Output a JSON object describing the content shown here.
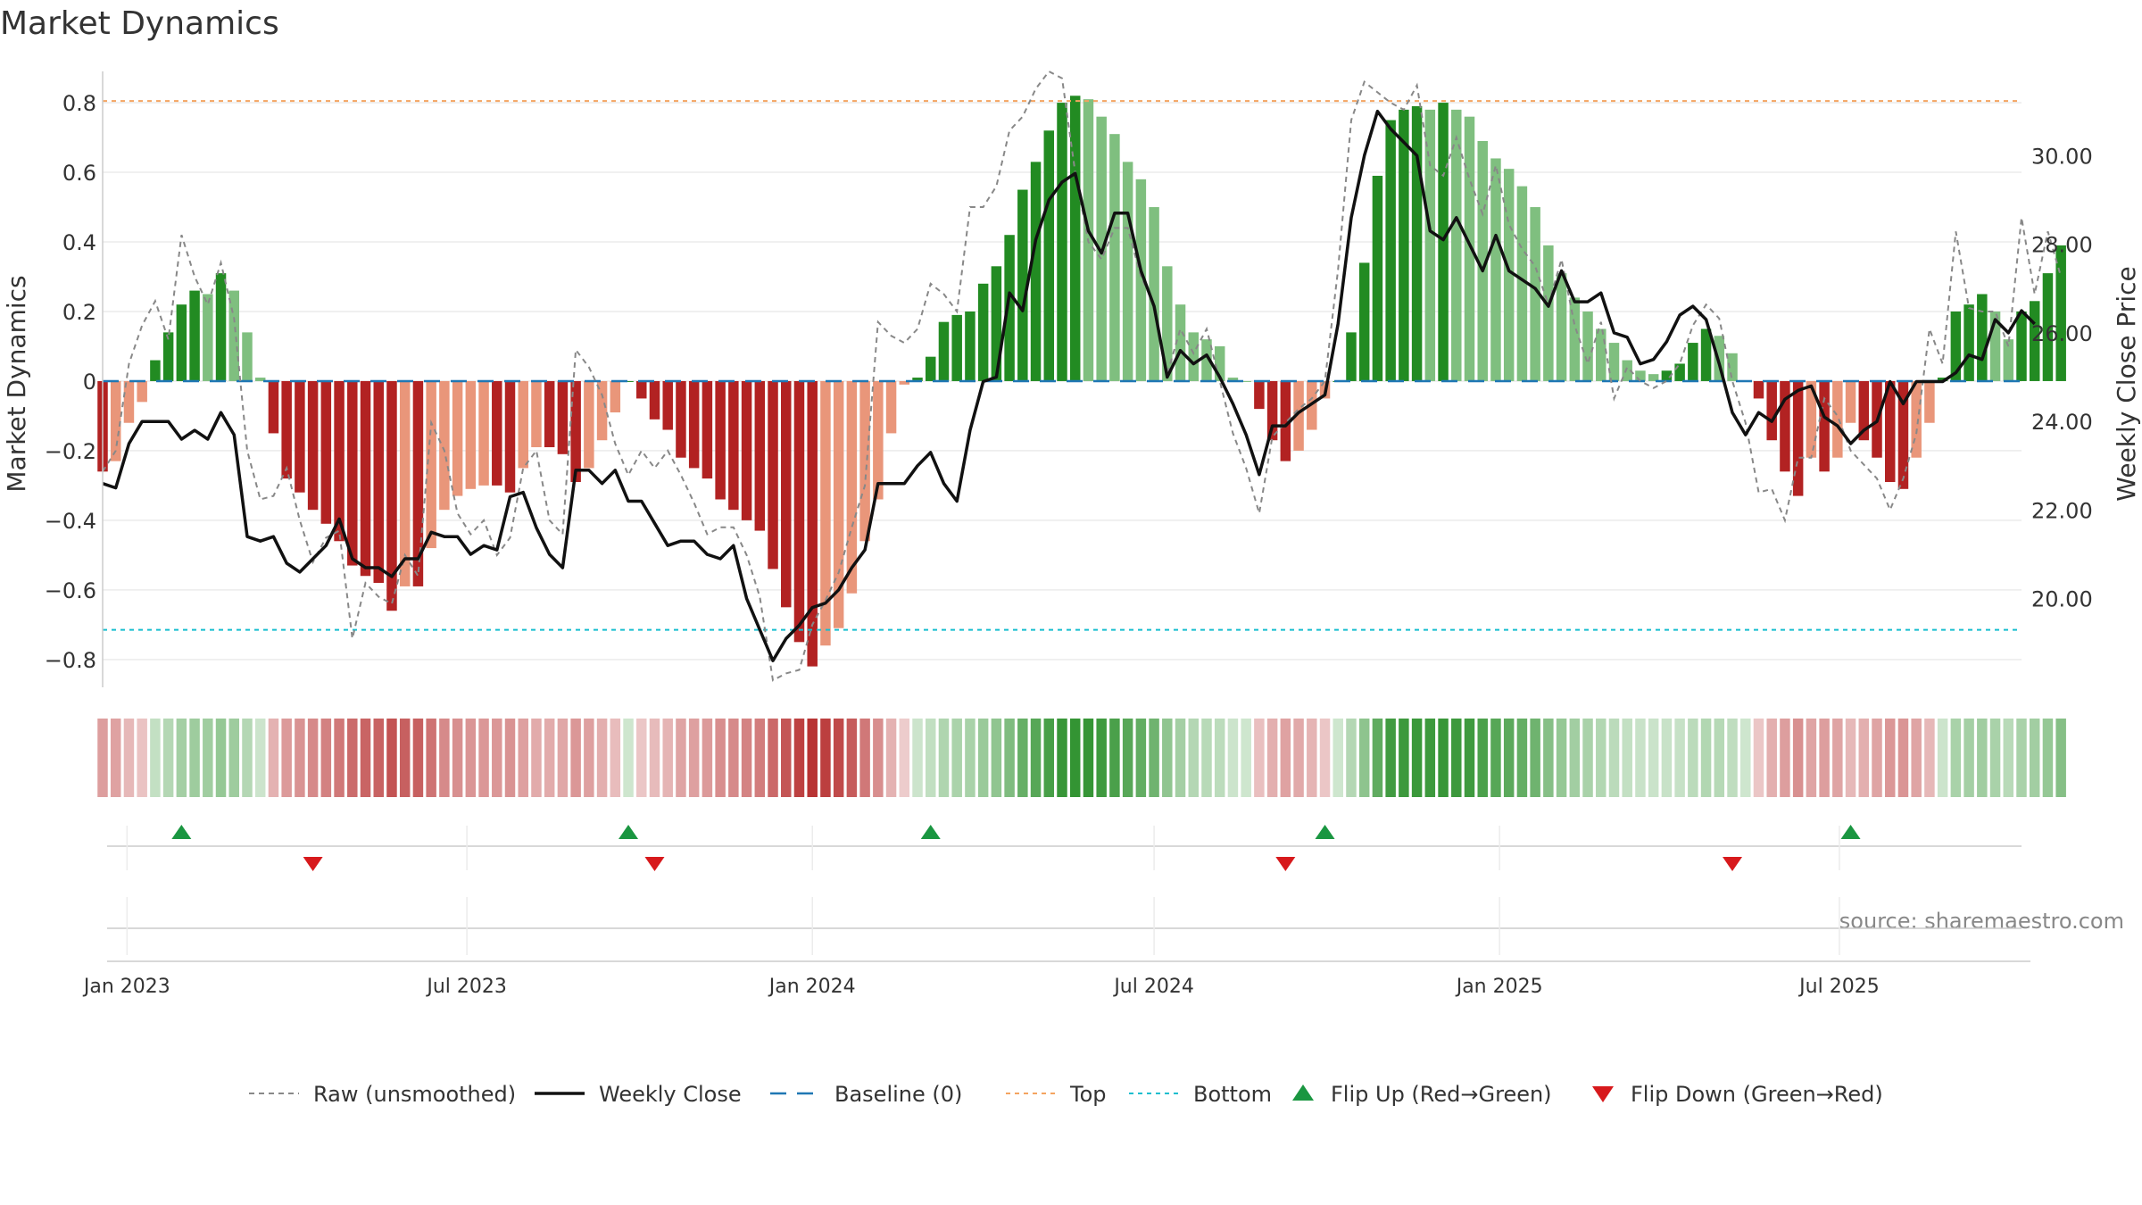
{
  "chart_data": {
    "type": "bar",
    "title": "Market Dynamics",
    "ylabel_left": "Market Dynamics",
    "ylabel_right": "Weekly Close Price",
    "source": "source: sharemaestro.com",
    "ylim_left": [
      -0.88,
      0.89
    ],
    "ylim_right": [
      18.0,
      31.9
    ],
    "yticks_left": [
      0.8,
      0.6,
      0.4,
      0.2,
      0,
      -0.2,
      -0.4,
      -0.6,
      -0.8
    ],
    "yticks_left_labels": [
      "0.8",
      "0.6",
      "0.4",
      "0.2",
      "0",
      "−0.2",
      "−0.4",
      "−0.6",
      "−0.8"
    ],
    "yticks_right": [
      30,
      28,
      26,
      24,
      22,
      20
    ],
    "yticks_right_labels": [
      "30.00",
      "28.00",
      "26.00",
      "24.00",
      "22.00",
      "20.00"
    ],
    "x_start": "2022-12-19",
    "x_end": "2025-10-06",
    "xticks": [
      {
        "date": "2023-01-01",
        "label": "Jan 2023"
      },
      {
        "date": "2023-07-01",
        "label": "Jul 2023"
      },
      {
        "date": "2024-01-01",
        "label": "Jan 2024"
      },
      {
        "date": "2024-07-01",
        "label": "Jul 2024"
      },
      {
        "date": "2025-01-01",
        "label": "Jan 2025"
      },
      {
        "date": "2025-07-01",
        "label": "Jul 2025"
      }
    ],
    "top_level": 0.805,
    "bottom_level": -0.715,
    "baseline": 0,
    "first_week": "2022-12-19",
    "weekly_dynamics": [
      -0.26,
      -0.23,
      -0.12,
      -0.06,
      0.06,
      0.14,
      0.22,
      0.26,
      0.25,
      0.31,
      0.26,
      0.14,
      0.01,
      -0.15,
      -0.28,
      -0.32,
      -0.37,
      -0.41,
      -0.46,
      -0.53,
      -0.56,
      -0.58,
      -0.66,
      -0.59,
      -0.59,
      -0.48,
      -0.37,
      -0.33,
      -0.31,
      -0.3,
      -0.3,
      -0.32,
      -0.25,
      -0.19,
      -0.19,
      -0.21,
      -0.29,
      -0.25,
      -0.17,
      -0.09,
      0.0,
      -0.05,
      -0.11,
      -0.14,
      -0.22,
      -0.25,
      -0.28,
      -0.34,
      -0.37,
      -0.4,
      -0.43,
      -0.54,
      -0.65,
      -0.75,
      -0.82,
      -0.76,
      -0.71,
      -0.61,
      -0.46,
      -0.34,
      -0.15,
      -0.01,
      0.01,
      0.07,
      0.17,
      0.19,
      0.2,
      0.28,
      0.33,
      0.42,
      0.55,
      0.63,
      0.72,
      0.8,
      0.82,
      0.81,
      0.76,
      0.71,
      0.63,
      0.58,
      0.5,
      0.33,
      0.22,
      0.14,
      0.12,
      0.1,
      0.01,
      0.0,
      -0.08,
      -0.17,
      -0.23,
      -0.2,
      -0.14,
      -0.05,
      0.0,
      0.14,
      0.34,
      0.59,
      0.75,
      0.78,
      0.79,
      0.78,
      0.8,
      0.78,
      0.76,
      0.69,
      0.64,
      0.61,
      0.56,
      0.5,
      0.39,
      0.31,
      0.24,
      0.2,
      0.15,
      0.11,
      0.06,
      0.03,
      0.02,
      0.03,
      0.05,
      0.11,
      0.15,
      0.13,
      0.08,
      0.0,
      -0.05,
      -0.17,
      -0.26,
      -0.33,
      -0.22,
      -0.26,
      -0.22,
      -0.12,
      -0.17,
      -0.22,
      -0.29,
      -0.31,
      -0.22,
      -0.12,
      0.01,
      0.2,
      0.22,
      0.25,
      0.2,
      0.12,
      0.2,
      0.23,
      0.31,
      0.39
    ],
    "weekly_close": [
      22.6,
      22.5,
      23.5,
      24.0,
      24.0,
      24.0,
      23.6,
      23.8,
      23.6,
      24.2,
      23.7,
      21.4,
      21.3,
      21.4,
      20.8,
      20.6,
      20.9,
      21.2,
      21.8,
      20.9,
      20.7,
      20.7,
      20.5,
      20.9,
      20.9,
      21.5,
      21.4,
      21.4,
      21.0,
      21.2,
      21.1,
      22.3,
      22.4,
      21.6,
      21.0,
      20.7,
      22.9,
      22.9,
      22.6,
      22.9,
      22.2,
      22.2,
      21.7,
      21.2,
      21.3,
      21.3,
      21.0,
      20.9,
      21.2,
      20.0,
      19.3,
      18.6,
      19.1,
      19.4,
      19.8,
      19.9,
      20.2,
      20.7,
      21.1,
      22.6,
      22.6,
      22.6,
      23.0,
      23.3,
      22.6,
      22.2,
      23.8,
      24.9,
      25.0,
      26.9,
      26.5,
      28.1,
      29.0,
      29.4,
      29.6,
      28.3,
      27.8,
      28.7,
      28.7,
      27.4,
      26.6,
      25.0,
      25.6,
      25.3,
      25.5,
      25.0,
      24.4,
      23.7,
      22.8,
      23.9,
      23.9,
      24.2,
      24.4,
      24.6,
      26.2,
      28.6,
      30.0,
      31.0,
      30.6,
      30.3,
      30.0,
      28.3,
      28.1,
      28.6,
      28.0,
      27.4,
      28.2,
      27.4,
      27.2,
      27.0,
      26.6,
      27.4,
      26.7,
      26.7,
      26.9,
      26.0,
      25.9,
      25.3,
      25.4,
      25.8,
      26.4,
      26.6,
      26.3,
      25.3,
      24.2,
      23.7,
      24.2,
      24.0,
      24.5,
      24.7,
      24.8,
      24.1,
      23.9,
      23.5,
      23.8,
      24.0,
      24.9,
      24.4,
      24.9,
      24.9,
      24.9,
      25.1,
      25.5,
      25.4,
      26.3,
      26.0,
      26.5,
      26.2
    ],
    "weekly_raw": [
      -0.26,
      -0.2,
      0.05,
      0.16,
      0.23,
      0.12,
      0.42,
      0.3,
      0.22,
      0.34,
      0.18,
      -0.2,
      -0.34,
      -0.33,
      -0.25,
      -0.4,
      -0.52,
      -0.45,
      -0.43,
      -0.74,
      -0.58,
      -0.62,
      -0.64,
      -0.5,
      -0.56,
      -0.12,
      -0.2,
      -0.38,
      -0.44,
      -0.4,
      -0.5,
      -0.45,
      -0.25,
      -0.2,
      -0.4,
      -0.44,
      0.09,
      0.04,
      -0.04,
      -0.18,
      -0.27,
      -0.2,
      -0.25,
      -0.2,
      -0.27,
      -0.35,
      -0.44,
      -0.42,
      -0.42,
      -0.5,
      -0.62,
      -0.86,
      -0.84,
      -0.83,
      -0.7,
      -0.63,
      -0.55,
      -0.42,
      -0.3,
      0.17,
      0.13,
      0.11,
      0.15,
      0.28,
      0.25,
      0.2,
      0.5,
      0.5,
      0.56,
      0.72,
      0.76,
      0.84,
      0.89,
      0.87,
      0.6,
      0.4,
      0.35,
      0.44,
      0.44,
      0.3,
      0.22,
      0.02,
      0.15,
      0.08,
      0.15,
      0.0,
      -0.15,
      -0.25,
      -0.38,
      -0.16,
      -0.12,
      -0.08,
      -0.05,
      0.0,
      0.32,
      0.75,
      0.86,
      0.83,
      0.8,
      0.78,
      0.85,
      0.62,
      0.59,
      0.7,
      0.58,
      0.48,
      0.62,
      0.45,
      0.38,
      0.33,
      0.22,
      0.35,
      0.16,
      0.05,
      0.17,
      -0.05,
      0.04,
      0.0,
      -0.02,
      0.0,
      0.05,
      0.16,
      0.22,
      0.18,
      0.0,
      -0.12,
      -0.32,
      -0.31,
      -0.4,
      -0.22,
      -0.22,
      -0.05,
      -0.1,
      -0.2,
      -0.24,
      -0.28,
      -0.37,
      -0.28,
      -0.15,
      0.15,
      0.05,
      0.43,
      0.21,
      0.2,
      0.2,
      0.1,
      0.47,
      0.25,
      0.43,
      0.3
    ],
    "flips_up": [
      "2023-01-30",
      "2023-09-25",
      "2024-03-04",
      "2024-09-30",
      "2025-07-07"
    ],
    "flips_down": [
      "2023-04-10",
      "2023-10-09",
      "2024-09-09",
      "2025-05-05"
    ],
    "legend": [
      {
        "key": "raw",
        "label": "Raw (unsmoothed)"
      },
      {
        "key": "close",
        "label": "Weekly Close"
      },
      {
        "key": "baseline",
        "label": "Baseline (0)"
      },
      {
        "key": "top",
        "label": "Top"
      },
      {
        "key": "bottom",
        "label": "Bottom"
      },
      {
        "key": "flip_up",
        "label": "Flip Up (Red→Green)"
      },
      {
        "key": "flip_down",
        "label": "Flip Down (Green→Red)"
      }
    ],
    "legend_placement": "bottom-center",
    "grid": true,
    "colors": {
      "pos_strong": "#228b22",
      "pos_weak": "#7fbf7f",
      "neg_strong": "#b22222",
      "neg_weak": "#e9967a",
      "close_line": "#111111",
      "raw_line": "#888888",
      "baseline": "#1f77b4",
      "top": "#f4a460",
      "bottom": "#17becf",
      "flip_up": "#1a9641",
      "flip_down": "#d7191c"
    }
  }
}
